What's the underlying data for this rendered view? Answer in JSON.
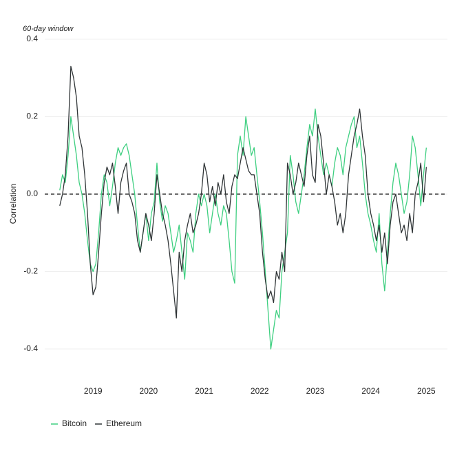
{
  "chart_data": {
    "type": "line",
    "subtitle": "60-day window",
    "y_label": "Correlation",
    "x": [
      2018.4,
      2018.45,
      2018.5,
      2018.55,
      2018.6,
      2018.65,
      2018.7,
      2018.75,
      2018.8,
      2018.85,
      2018.9,
      2018.95,
      2019.0,
      2019.05,
      2019.1,
      2019.15,
      2019.2,
      2019.25,
      2019.3,
      2019.35,
      2019.4,
      2019.45,
      2019.5,
      2019.55,
      2019.6,
      2019.65,
      2019.7,
      2019.75,
      2019.8,
      2019.85,
      2019.9,
      2019.95,
      2020.0,
      2020.05,
      2020.1,
      2020.15,
      2020.2,
      2020.25,
      2020.3,
      2020.35,
      2020.4,
      2020.45,
      2020.5,
      2020.55,
      2020.6,
      2020.65,
      2020.7,
      2020.75,
      2020.8,
      2020.85,
      2020.9,
      2020.95,
      2021.0,
      2021.05,
      2021.1,
      2021.15,
      2021.2,
      2021.25,
      2021.3,
      2021.35,
      2021.4,
      2021.45,
      2021.5,
      2021.55,
      2021.6,
      2021.65,
      2021.7,
      2021.75,
      2021.8,
      2021.85,
      2021.9,
      2021.95,
      2022.0,
      2022.05,
      2022.1,
      2022.15,
      2022.2,
      2022.25,
      2022.3,
      2022.35,
      2022.4,
      2022.45,
      2022.5,
      2022.55,
      2022.6,
      2022.65,
      2022.7,
      2022.75,
      2022.8,
      2022.85,
      2022.9,
      2022.95,
      2023.0,
      2023.05,
      2023.1,
      2023.15,
      2023.2,
      2023.25,
      2023.3,
      2023.35,
      2023.4,
      2023.45,
      2023.5,
      2023.55,
      2023.6,
      2023.65,
      2023.7,
      2023.75,
      2023.8,
      2023.85,
      2023.9,
      2023.95,
      2024.0,
      2024.05,
      2024.1,
      2024.15,
      2024.2,
      2024.25,
      2024.3,
      2024.35,
      2024.4,
      2024.45,
      2024.5,
      2024.55,
      2024.6,
      2024.65,
      2024.7,
      2024.75,
      2024.8,
      2024.85,
      2024.9,
      2024.95,
      2025.0
    ],
    "series": [
      {
        "name": "Bitcoin",
        "color": "#3ecf80",
        "values": [
          0.01,
          0.05,
          0.03,
          0.1,
          0.2,
          0.15,
          0.1,
          0.03,
          0.0,
          -0.05,
          -0.12,
          -0.18,
          -0.2,
          -0.18,
          -0.1,
          0.0,
          0.05,
          0.03,
          -0.03,
          0.02,
          0.08,
          0.12,
          0.1,
          0.12,
          0.13,
          0.1,
          0.05,
          0.0,
          -0.08,
          -0.15,
          -0.1,
          -0.05,
          -0.12,
          -0.05,
          -0.02,
          0.08,
          -0.02,
          -0.07,
          -0.03,
          -0.05,
          -0.1,
          -0.15,
          -0.12,
          -0.08,
          -0.15,
          -0.22,
          -0.1,
          -0.12,
          -0.15,
          -0.05,
          0.0,
          -0.03,
          0.0,
          -0.03,
          -0.1,
          -0.05,
          0.0,
          -0.05,
          -0.08,
          -0.03,
          -0.05,
          -0.12,
          -0.2,
          -0.23,
          0.1,
          0.15,
          0.1,
          0.2,
          0.15,
          0.1,
          0.12,
          0.05,
          -0.02,
          -0.1,
          -0.2,
          -0.3,
          -0.4,
          -0.35,
          -0.3,
          -0.32,
          -0.2,
          -0.15,
          -0.1,
          0.1,
          0.05,
          -0.02,
          -0.05,
          0.0,
          0.05,
          0.12,
          0.18,
          0.15,
          0.22,
          0.15,
          0.1,
          0.05,
          0.08,
          0.05,
          0.02,
          0.08,
          0.12,
          0.1,
          0.05,
          0.12,
          0.15,
          0.18,
          0.2,
          0.12,
          0.15,
          0.08,
          0.0,
          -0.05,
          -0.08,
          -0.12,
          -0.15,
          -0.05,
          -0.18,
          -0.25,
          -0.15,
          -0.05,
          0.03,
          0.08,
          0.05,
          0.0,
          -0.05,
          -0.02,
          0.05,
          0.15,
          0.12,
          0.05,
          -0.03,
          0.05,
          0.12
        ]
      },
      {
        "name": "Ethereum",
        "color": "#2f3436",
        "values": [
          -0.03,
          0.0,
          0.05,
          0.15,
          0.33,
          0.3,
          0.25,
          0.15,
          0.12,
          0.05,
          -0.05,
          -0.18,
          -0.26,
          -0.24,
          -0.15,
          -0.05,
          0.03,
          0.07,
          0.05,
          0.08,
          0.02,
          -0.05,
          0.03,
          0.06,
          0.08,
          0.0,
          -0.02,
          -0.05,
          -0.12,
          -0.15,
          -0.1,
          -0.05,
          -0.08,
          -0.12,
          -0.05,
          0.05,
          0.0,
          -0.05,
          -0.08,
          -0.12,
          -0.18,
          -0.25,
          -0.32,
          -0.15,
          -0.2,
          -0.12,
          -0.08,
          -0.05,
          -0.1,
          -0.08,
          -0.05,
          0.0,
          0.08,
          0.05,
          -0.02,
          0.02,
          -0.03,
          0.03,
          0.0,
          0.05,
          -0.02,
          -0.05,
          0.02,
          0.05,
          0.04,
          0.08,
          0.12,
          0.09,
          0.06,
          0.05,
          0.05,
          0.0,
          -0.05,
          -0.15,
          -0.22,
          -0.27,
          -0.25,
          -0.28,
          -0.2,
          -0.22,
          -0.15,
          -0.2,
          0.08,
          0.05,
          0.0,
          0.03,
          0.08,
          0.05,
          0.02,
          0.1,
          0.15,
          0.05,
          0.03,
          0.18,
          0.15,
          0.08,
          0.0,
          0.05,
          0.02,
          -0.02,
          -0.08,
          -0.05,
          -0.1,
          -0.05,
          0.05,
          0.1,
          0.15,
          0.18,
          0.22,
          0.15,
          0.1,
          0.0,
          -0.05,
          -0.08,
          -0.12,
          -0.08,
          -0.15,
          -0.1,
          -0.18,
          -0.08,
          -0.02,
          0.0,
          -0.05,
          -0.1,
          -0.08,
          -0.12,
          -0.05,
          -0.1,
          0.0,
          0.03,
          0.08,
          -0.02,
          0.07
        ]
      }
    ],
    "xlim": [
      2018.13,
      2025.38
    ],
    "xticks": [
      2019,
      2020,
      2021,
      2022,
      2023,
      2024,
      2025
    ],
    "ylim": [
      -0.47,
      0.42
    ],
    "yticks": [
      -0.4,
      -0.2,
      {
        "value": 0,
        "label": "0.0"
      },
      0.2,
      0.4
    ],
    "reference_line": 0,
    "grid": true,
    "legend": "bottom-left"
  }
}
